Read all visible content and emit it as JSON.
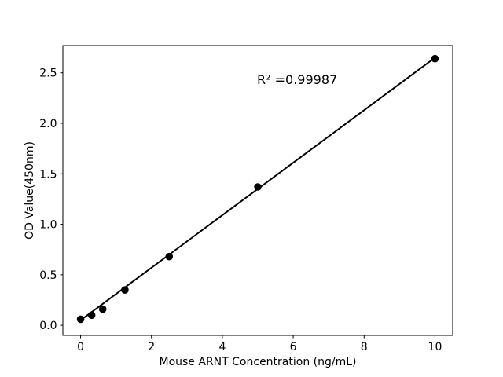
{
  "figure": {
    "background": "#ffffff"
  },
  "chart_data": {
    "type": "scatter",
    "title": "",
    "xlabel": "Mouse ARNT Concentration (ng/mL)",
    "ylabel": "OD Value(450nm)",
    "annotation": "R² =0.99987",
    "x": [
      0,
      0.3125,
      0.625,
      1.25,
      2.5,
      5,
      10
    ],
    "y": [
      0.06,
      0.1,
      0.16,
      0.35,
      0.68,
      1.37,
      2.64
    ],
    "fit_line": {
      "x": [
        0,
        10
      ],
      "y": [
        0.05,
        2.65
      ]
    },
    "xlim": [
      -0.5,
      10.5
    ],
    "ylim": [
      -0.1,
      2.77
    ],
    "xticks": [
      {
        "value": 0,
        "label": "0"
      },
      {
        "value": 2,
        "label": "2"
      },
      {
        "value": 4,
        "label": "4"
      },
      {
        "value": 6,
        "label": "6"
      },
      {
        "value": 8,
        "label": "8"
      },
      {
        "value": 10,
        "label": "10"
      }
    ],
    "yticks": [
      {
        "value": 0,
        "label": "0.0"
      },
      {
        "value": 0.5,
        "label": "0.5"
      },
      {
        "value": 1,
        "label": "1.0"
      },
      {
        "value": 1.5,
        "label": "1.5"
      },
      {
        "value": 2,
        "label": "2.0"
      },
      {
        "value": 2.5,
        "label": "2.5"
      }
    ],
    "grid": false,
    "legend": null,
    "colors": {
      "line": "#000000",
      "marker": "#000000",
      "text": "#000000",
      "spine": "#000000",
      "background": "#ffffff"
    }
  }
}
